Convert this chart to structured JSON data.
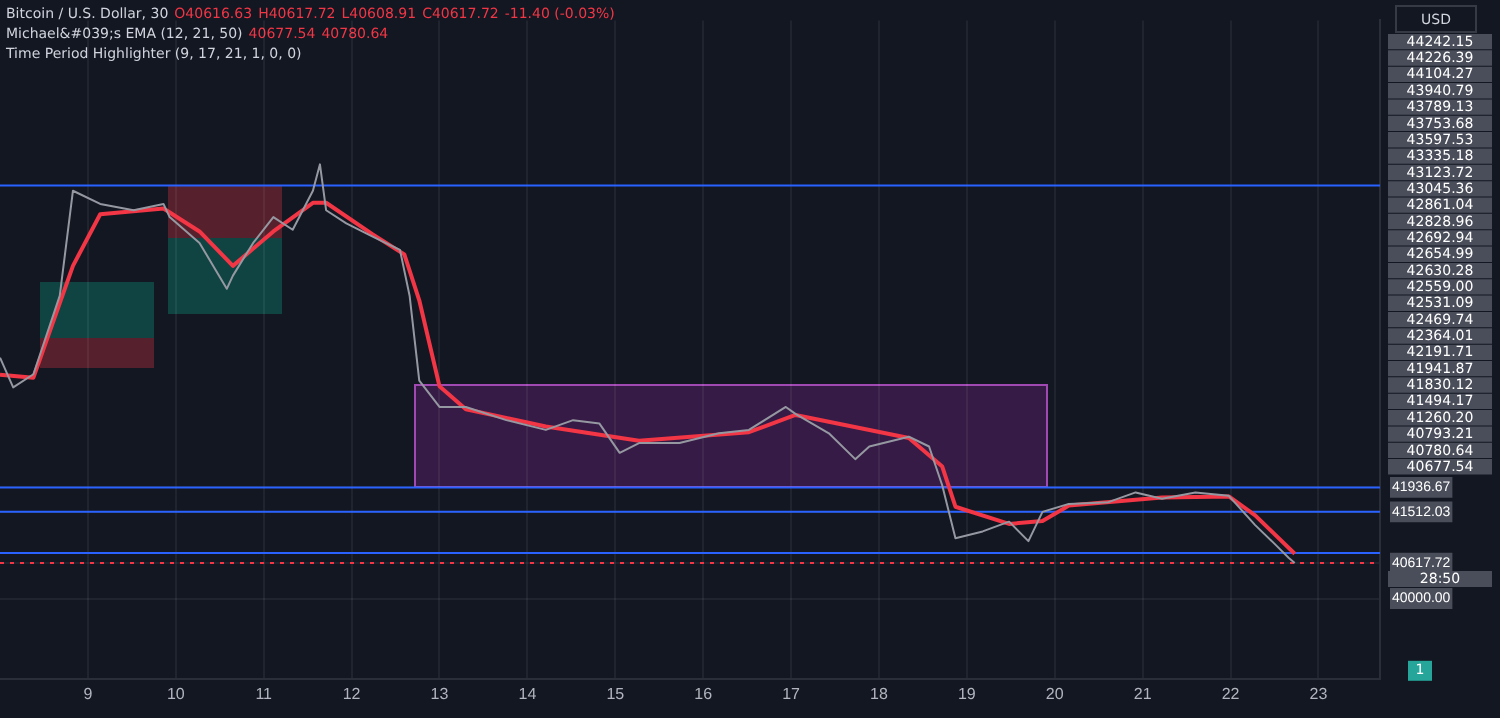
{
  "chart_data": {
    "type": "line",
    "title": "Bitcoin / U.S. Dollar, 30",
    "annotations": [
      "O40616.63",
      "H40617.72",
      "L40608.91",
      "C40617.72",
      "-11.40 (-0.03%)",
      "Michael&#039;s EMA (12, 21, 50)",
      "40677.54",
      "40780.64",
      "Time Period Highlighter (9, 17, 21, 1, 0, 0)",
      "USD",
      "44242.15",
      "44226.39",
      "44104.27",
      "43940.79",
      "43789.13",
      "43753.68",
      "43597.53",
      "43335.18",
      "43123.72",
      "43045.36",
      "42861.04",
      "42828.96",
      "42692.94",
      "42654.99",
      "42630.28",
      "42559.00",
      "42531.09",
      "42469.74",
      "42364.01",
      "42191.71",
      "41941.87",
      "41830.12",
      "41494.17",
      "41260.20",
      "40793.21",
      "40780.64",
      "40677.54",
      "28:50",
      "1"
    ],
    "series": [
      {
        "color": "#9598a1",
        "x": [
          8.0,
          8.15,
          8.38,
          8.68,
          8.83,
          9.14,
          9.52,
          9.86,
          9.93,
          10.27,
          10.58,
          10.65,
          10.88,
          11.11,
          11.33,
          11.56,
          11.64,
          11.71,
          11.94,
          12.24,
          12.55,
          12.66,
          12.77,
          13.0,
          13.3,
          13.76,
          14.21,
          14.52,
          14.82,
          15.05,
          15.27,
          15.73,
          16.18,
          16.52,
          16.94,
          17.05,
          17.43,
          17.73,
          17.89,
          18.34,
          18.57,
          18.72,
          18.87,
          19.18,
          19.48,
          19.7,
          19.86,
          20.16,
          20.61,
          20.92,
          21.22,
          21.6,
          21.98,
          22.28,
          22.51,
          22.66,
          22.73
        ],
        "values": [
          44200,
          43680,
          43910,
          45280,
          47110,
          46880,
          46770,
          46880,
          46650,
          46200,
          45400,
          45630,
          46200,
          46650,
          46430,
          47110,
          47570,
          46770,
          46540,
          46310,
          46080,
          45280,
          43800,
          43340,
          43340,
          43110,
          42940,
          43110,
          43050,
          42540,
          42710,
          42710,
          42880,
          42940,
          43340,
          43220,
          42880,
          42430,
          42650,
          42820,
          42650,
          41970,
          41050,
          41170,
          41340,
          41000,
          41510,
          41650,
          41680,
          41850,
          41740,
          41850,
          41790,
          41280,
          40940,
          40710,
          40620
        ]
      },
      {
        "color": "#f23645",
        "x": [
          8.0,
          8.38,
          8.83,
          9.14,
          9.86,
          10.27,
          10.65,
          11.11,
          11.56,
          11.71,
          12.24,
          12.6,
          12.77,
          13.0,
          13.3,
          14.21,
          15.27,
          16.52,
          17.05,
          18.34,
          18.72,
          18.87,
          19.48,
          19.86,
          20.16,
          21.22,
          21.98,
          22.28,
          22.73
        ],
        "values": [
          43900,
          43850,
          45800,
          46700,
          46800,
          46400,
          45800,
          46400,
          46900,
          46900,
          46350,
          46000,
          45200,
          43700,
          43300,
          43000,
          42750,
          42900,
          43200,
          42800,
          42300,
          41600,
          41300,
          41350,
          41620,
          41760,
          41780,
          41450,
          40780
        ]
      }
    ],
    "xlim": [
      8,
      23.7
    ],
    "xticks": [
      9,
      10,
      11,
      12,
      13,
      14,
      15,
      16,
      17,
      18,
      19,
      20,
      21,
      22,
      23
    ],
    "ylim": [
      38600,
      50080
    ],
    "yticks": [
      {
        "value": 40000,
        "label": "40000.00"
      },
      {
        "value": 40617.72,
        "label": "40617.72"
      },
      41512.03,
      41936.67
    ],
    "ref_lines": [
      {
        "axis": "y",
        "value": 47200,
        "color": "#2962ff"
      },
      {
        "axis": "y",
        "value": 41936.67,
        "color": "#2962ff"
      },
      {
        "axis": "y",
        "value": 41512.03,
        "color": "#2962ff"
      },
      {
        "axis": "y",
        "value": 40793.21,
        "color": "#2962ff"
      },
      {
        "axis": "y",
        "value": 40617.72,
        "color": "#f23645",
        "line_style": "dotted"
      }
    ],
    "grid": true,
    "legend": false
  }
}
